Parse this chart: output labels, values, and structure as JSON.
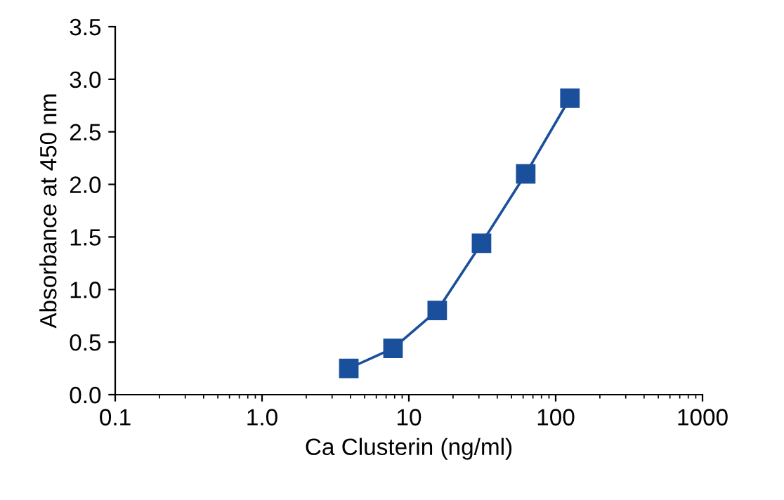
{
  "chart_data": {
    "type": "line",
    "xlabel": "Ca Clusterin (ng/ml)",
    "ylabel": "Absorbance at 450 nm",
    "x": [
      3.9,
      7.8,
      15.6,
      31.25,
      62.5,
      125
    ],
    "series": [
      {
        "color": "#1a4f9c",
        "values": [
          0.25,
          0.44,
          0.8,
          1.44,
          2.1,
          2.82
        ]
      }
    ],
    "log": "x",
    "marker": "square",
    "line_style": "solid",
    "grid": false,
    "legend": false,
    "xlim": [
      0.1,
      1000
    ],
    "xticks": [
      0.1,
      {
        "value": 1,
        "label": "1.0"
      },
      10,
      100,
      1000
    ],
    "ylim": [
      0,
      3.5
    ],
    "yticks": [
      {
        "value": 0,
        "label": "0.0"
      },
      0.5,
      {
        "value": 1,
        "label": "1.0"
      },
      1.5,
      {
        "value": 2,
        "label": "2.0"
      },
      2.5,
      {
        "value": 3,
        "label": "3.0"
      },
      3.5
    ]
  }
}
